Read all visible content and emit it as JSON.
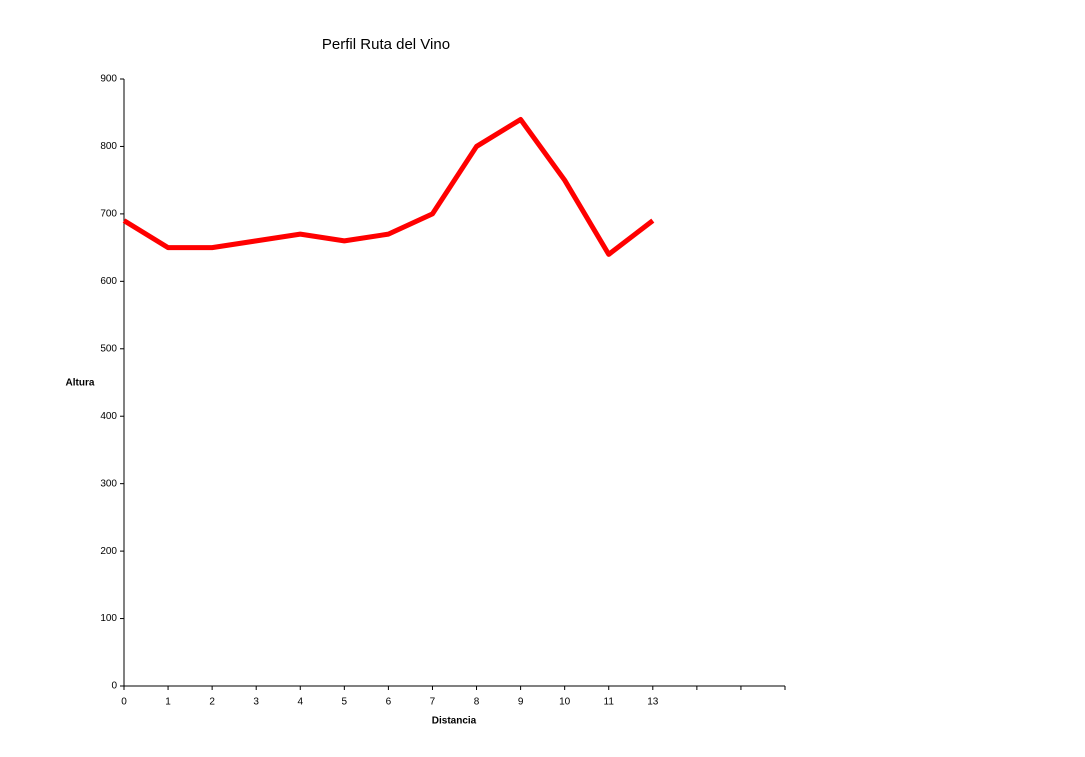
{
  "chart_data": {
    "type": "line",
    "title": "Perfil Ruta del Vino",
    "x_label": "Distancia",
    "y_label": "Altura",
    "categories": [
      "0",
      "1",
      "2",
      "3",
      "4",
      "5",
      "6",
      "7",
      "8",
      "9",
      "10",
      "11",
      "13",
      null,
      null,
      null
    ],
    "values": [
      690,
      650,
      650,
      660,
      670,
      660,
      670,
      700,
      800,
      840,
      750,
      640,
      690,
      null,
      null,
      null
    ],
    "color": "#ff0000",
    "ylim": [
      0,
      900
    ],
    "yticks": [
      0,
      100,
      200,
      300,
      400,
      500,
      600,
      700,
      800,
      900
    ],
    "grid": false
  }
}
